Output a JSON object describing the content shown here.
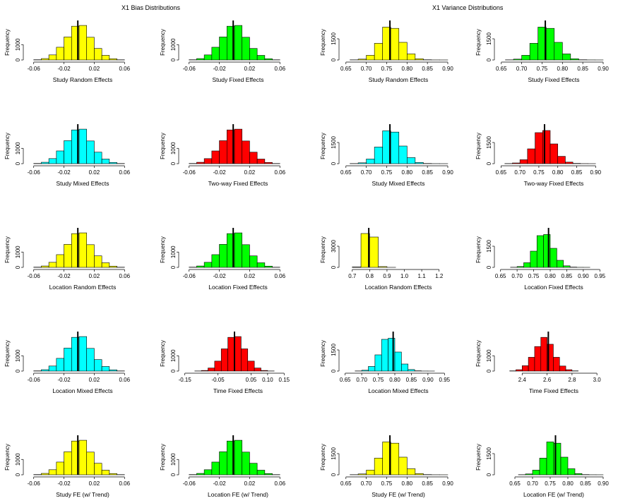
{
  "titles": {
    "left": "X1 Bias Distributions",
    "right": "X1 Variance Distributions"
  },
  "colors": {
    "yellow": "#ffff00",
    "green": "#00ff00",
    "cyan": "#00ffff",
    "red": "#ff0000",
    "line": "#000000"
  },
  "chart_data": [
    {
      "type": "histogram",
      "title": "",
      "xlabel": "Study Random Effects",
      "ylabel": "Frequency",
      "color": "yellow",
      "xlim": [
        -0.07,
        0.07
      ],
      "ylim": [
        0,
        2300
      ],
      "xticks": [
        -0.06,
        -0.02,
        0.02,
        0.06
      ],
      "xtick_labels": [
        "-0.06",
        "-0.02",
        "0.02",
        "0.06"
      ],
      "yticks": [
        0,
        1000
      ],
      "ytick_labels": [
        "0",
        "1000"
      ],
      "bin_start": -0.06,
      "bin_width": 0.01,
      "values": [
        15,
        90,
        330,
        830,
        1500,
        2200,
        2250,
        1480,
        750,
        300,
        80,
        12
      ],
      "mean_line": -0.0017
    },
    {
      "type": "histogram",
      "title": "",
      "xlabel": "Study Fixed Effects",
      "ylabel": "Frequency",
      "color": "green",
      "xlim": [
        -0.07,
        0.07
      ],
      "ylim": [
        0,
        2300
      ],
      "xticks": [
        -0.06,
        -0.02,
        0.02,
        0.06
      ],
      "xtick_labels": [
        "-0.06",
        "-0.02",
        "0.02",
        "0.06"
      ],
      "yticks": [
        0,
        1000
      ],
      "ytick_labels": [
        "0",
        "1000"
      ],
      "bin_start": -0.06,
      "bin_width": 0.01,
      "values": [
        15,
        90,
        330,
        830,
        1500,
        2200,
        2250,
        1480,
        750,
        300,
        80,
        12
      ],
      "mean_line": -0.0017
    },
    {
      "type": "histogram",
      "title": "",
      "xlabel": "Study Random Effects",
      "ylabel": "Frequency",
      "color": "yellow",
      "xlim": [
        0.64,
        0.9
      ],
      "ylim": [
        0,
        2500
      ],
      "xticks": [
        0.65,
        0.7,
        0.75,
        0.8,
        0.85,
        0.9
      ],
      "xtick_labels": [
        "0.65",
        "0.70",
        "0.75",
        "0.80",
        "0.85",
        "0.90"
      ],
      "yticks": [
        0,
        1500
      ],
      "ytick_labels": [
        "0",
        "1500"
      ],
      "bin_start": 0.66,
      "bin_width": 0.02,
      "values": [
        10,
        60,
        330,
        1180,
        2330,
        2240,
        1250,
        430,
        85,
        15,
        4,
        2
      ],
      "mean_line": 0.758
    },
    {
      "type": "histogram",
      "title": "",
      "xlabel": "Study Fixed Effects",
      "ylabel": "Frequency",
      "color": "green",
      "xlim": [
        0.64,
        0.9
      ],
      "ylim": [
        0,
        2500
      ],
      "xticks": [
        0.65,
        0.7,
        0.75,
        0.8,
        0.85,
        0.9
      ],
      "xtick_labels": [
        "0.65",
        "0.70",
        "0.75",
        "0.80",
        "0.85",
        "0.90"
      ],
      "yticks": [
        0,
        1500
      ],
      "ytick_labels": [
        "0",
        "1500"
      ],
      "bin_start": 0.66,
      "bin_width": 0.02,
      "values": [
        10,
        60,
        330,
        1180,
        2330,
        2240,
        1250,
        430,
        85,
        15,
        4,
        2
      ],
      "mean_line": 0.758
    },
    {
      "type": "histogram",
      "title": "",
      "xlabel": "Study Mixed Effects",
      "ylabel": "Frequency",
      "color": "cyan",
      "xlim": [
        -0.07,
        0.07
      ],
      "ylim": [
        0,
        2300
      ],
      "xticks": [
        -0.06,
        -0.02,
        0.02,
        0.06
      ],
      "xtick_labels": [
        "-0.06",
        "-0.02",
        "0.02",
        "0.06"
      ],
      "yticks": [
        0,
        1000
      ],
      "ytick_labels": [
        "0",
        "1000"
      ],
      "bin_start": -0.06,
      "bin_width": 0.01,
      "values": [
        15,
        90,
        330,
        830,
        1500,
        2200,
        2250,
        1480,
        750,
        300,
        80,
        12
      ],
      "mean_line": -0.0017
    },
    {
      "type": "histogram",
      "title": "",
      "xlabel": "Two-way Fixed Effects",
      "ylabel": "Frequency",
      "color": "red",
      "xlim": [
        -0.07,
        0.07
      ],
      "ylim": [
        0,
        2300
      ],
      "xticks": [
        -0.06,
        -0.02,
        0.02,
        0.06
      ],
      "xtick_labels": [
        "-0.06",
        "-0.02",
        "0.02",
        "0.06"
      ],
      "yticks": [
        0,
        1000
      ],
      "ytick_labels": [
        "0",
        "1000"
      ],
      "bin_start": -0.06,
      "bin_width": 0.01,
      "values": [
        15,
        90,
        330,
        830,
        1500,
        2200,
        2250,
        1480,
        750,
        300,
        80,
        12
      ],
      "mean_line": -0.0017
    },
    {
      "type": "histogram",
      "title": "",
      "xlabel": "Study Mixed Effects",
      "ylabel": "Frequency",
      "color": "cyan",
      "xlim": [
        0.64,
        0.9
      ],
      "ylim": [
        0,
        2500
      ],
      "xticks": [
        0.65,
        0.7,
        0.75,
        0.8,
        0.85,
        0.9
      ],
      "xtick_labels": [
        "0.65",
        "0.70",
        "0.75",
        "0.80",
        "0.85",
        "0.90"
      ],
      "yticks": [
        0,
        1500
      ],
      "ytick_labels": [
        "0",
        "1500"
      ],
      "bin_start": 0.66,
      "bin_width": 0.02,
      "values": [
        10,
        60,
        330,
        1180,
        2330,
        2240,
        1250,
        430,
        85,
        15,
        4,
        2
      ],
      "mean_line": 0.758
    },
    {
      "type": "histogram",
      "title": "",
      "xlabel": "Two-way Fixed Effects",
      "ylabel": "Frequency",
      "color": "red",
      "xlim": [
        0.64,
        0.92
      ],
      "ylim": [
        0,
        2500
      ],
      "xticks": [
        0.65,
        0.7,
        0.75,
        0.8,
        0.85,
        0.9
      ],
      "xtick_labels": [
        "0.65",
        "0.70",
        "0.75",
        "0.80",
        "0.85",
        "0.90"
      ],
      "yticks": [
        0,
        1500
      ],
      "ytick_labels": [
        "0",
        "1500"
      ],
      "bin_start": 0.66,
      "bin_width": 0.02,
      "values": [
        10,
        50,
        280,
        1050,
        2200,
        2350,
        1400,
        520,
        110,
        20,
        5,
        2
      ],
      "mean_line": 0.765
    },
    {
      "type": "histogram",
      "title": "",
      "xlabel": "Location Random Effects",
      "ylabel": "Frequency",
      "color": "yellow",
      "xlim": [
        -0.07,
        0.07
      ],
      "ylim": [
        0,
        2300
      ],
      "xticks": [
        -0.06,
        -0.02,
        0.02,
        0.06
      ],
      "xtick_labels": [
        "-0.06",
        "-0.02",
        "0.02",
        "0.06"
      ],
      "yticks": [
        0,
        1000
      ],
      "ytick_labels": [
        "0",
        "1000"
      ],
      "bin_start": -0.06,
      "bin_width": 0.01,
      "values": [
        15,
        90,
        330,
        830,
        1500,
        2200,
        2250,
        1480,
        750,
        300,
        80,
        12
      ],
      "mean_line": -0.0017
    },
    {
      "type": "histogram",
      "title": "",
      "xlabel": "Location Fixed Effects",
      "ylabel": "Frequency",
      "color": "green",
      "xlim": [
        -0.07,
        0.07
      ],
      "ylim": [
        0,
        2300
      ],
      "xticks": [
        -0.06,
        -0.02,
        0.02,
        0.06
      ],
      "xtick_labels": [
        "-0.06",
        "-0.02",
        "0.02",
        "0.06"
      ],
      "yticks": [
        0,
        1000
      ],
      "ytick_labels": [
        "0",
        "1000"
      ],
      "bin_start": -0.06,
      "bin_width": 0.01,
      "values": [
        15,
        90,
        330,
        830,
        1500,
        2200,
        2250,
        1480,
        750,
        300,
        80,
        12
      ],
      "mean_line": -0.0017
    },
    {
      "type": "histogram",
      "title": "",
      "xlabel": "Location Random Effects",
      "ylabel": "Frequency",
      "color": "yellow",
      "xlim": [
        0.64,
        1.25
      ],
      "ylim": [
        0,
        5000
      ],
      "xticks": [
        0.7,
        0.8,
        0.9,
        1.0,
        1.1,
        1.2
      ],
      "xtick_labels": [
        "0.7",
        "0.8",
        "0.9",
        "1.0",
        "1.1",
        "1.2"
      ],
      "yticks": [
        0,
        3000
      ],
      "ytick_labels": [
        "0",
        "3000"
      ],
      "bin_start": 0.7,
      "bin_width": 0.05,
      "values": [
        60,
        4800,
        4300,
        110,
        5,
        0,
        0,
        0,
        0,
        0,
        0
      ],
      "mean_line": 0.795
    },
    {
      "type": "histogram",
      "title": "",
      "xlabel": "Location Fixed Effects",
      "ylabel": "Frequency",
      "color": "green",
      "xlim": [
        0.64,
        0.96
      ],
      "ylim": [
        0,
        2500
      ],
      "xticks": [
        0.65,
        0.7,
        0.75,
        0.8,
        0.85,
        0.9,
        0.95
      ],
      "xtick_labels": [
        "0.65",
        "0.70",
        "0.75",
        "0.80",
        "0.85",
        "0.90",
        "0.95"
      ],
      "yticks": [
        0,
        1500
      ],
      "ytick_labels": [
        "0",
        "1500"
      ],
      "bin_start": 0.68,
      "bin_width": 0.02,
      "values": [
        10,
        60,
        330,
        1150,
        2250,
        2330,
        1350,
        500,
        110,
        20,
        4,
        2
      ],
      "mean_line": 0.795
    },
    {
      "type": "histogram",
      "title": "",
      "xlabel": "Location Mixed Effects",
      "ylabel": "Frequency",
      "color": "cyan",
      "xlim": [
        -0.07,
        0.07
      ],
      "ylim": [
        0,
        2300
      ],
      "xticks": [
        -0.06,
        -0.02,
        0.02,
        0.06
      ],
      "xtick_labels": [
        "-0.06",
        "-0.02",
        "0.02",
        "0.06"
      ],
      "yticks": [
        0,
        1000
      ],
      "ytick_labels": [
        "0",
        "1000"
      ],
      "bin_start": -0.06,
      "bin_width": 0.01,
      "values": [
        15,
        90,
        330,
        830,
        1500,
        2200,
        2250,
        1480,
        750,
        300,
        80,
        12
      ],
      "mean_line": -0.0017
    },
    {
      "type": "histogram",
      "title": "",
      "xlabel": "Time Fixed Effects",
      "ylabel": "Frequency",
      "color": "red",
      "xlim": [
        -0.16,
        0.16
      ],
      "ylim": [
        0,
        2300
      ],
      "xticks": [
        -0.15,
        -0.05,
        0.05,
        0.1,
        0.15
      ],
      "xtick_labels": [
        "-0.15",
        "-0.05",
        "0.05",
        "0.10",
        "0.15"
      ],
      "yticks": [
        0,
        1000
      ],
      "ytick_labels": [
        "0",
        "1000"
      ],
      "bin_start": -0.12,
      "bin_width": 0.02,
      "values": [
        8,
        40,
        200,
        650,
        1450,
        2200,
        2250,
        1450,
        650,
        200,
        40,
        8
      ],
      "mean_line": 0.0
    },
    {
      "type": "histogram",
      "title": "",
      "xlabel": "Location Mixed Effects",
      "ylabel": "Frequency",
      "color": "cyan",
      "xlim": [
        0.64,
        0.96
      ],
      "ylim": [
        0,
        2500
      ],
      "xticks": [
        0.65,
        0.7,
        0.75,
        0.8,
        0.85,
        0.9,
        0.95
      ],
      "xtick_labels": [
        "0.65",
        "0.70",
        "0.75",
        "0.80",
        "0.85",
        "0.90",
        "0.95"
      ],
      "yticks": [
        0,
        1500
      ],
      "ytick_labels": [
        "0",
        "1500"
      ],
      "bin_start": 0.68,
      "bin_width": 0.02,
      "values": [
        10,
        60,
        330,
        1150,
        2250,
        2330,
        1350,
        500,
        110,
        20,
        4,
        2
      ],
      "mean_line": 0.795
    },
    {
      "type": "histogram",
      "title": "",
      "xlabel": "Time Fixed Effects",
      "ylabel": "Frequency",
      "color": "red",
      "xlim": [
        2.2,
        3.05
      ],
      "ylim": [
        0,
        2300
      ],
      "xticks": [
        2.4,
        2.6,
        2.8,
        3.0
      ],
      "xtick_labels": [
        "2.4",
        "2.6",
        "2.8",
        "3.0"
      ],
      "yticks": [
        0,
        1000
      ],
      "ytick_labels": [
        "0",
        "1000"
      ],
      "bin_start": 2.3,
      "bin_width": 0.05,
      "values": [
        15,
        90,
        350,
        900,
        1600,
        2200,
        1750,
        900,
        330,
        90,
        15
      ],
      "mean_line": 2.61
    },
    {
      "type": "histogram",
      "title": "",
      "xlabel": "Study FE (w/ Trend)",
      "ylabel": "Frequency",
      "color": "yellow",
      "xlim": [
        -0.07,
        0.07
      ],
      "ylim": [
        0,
        2300
      ],
      "xticks": [
        -0.06,
        -0.02,
        0.02,
        0.06
      ],
      "xtick_labels": [
        "-0.06",
        "-0.02",
        "0.02",
        "0.06"
      ],
      "yticks": [
        0,
        1000
      ],
      "ytick_labels": [
        "0",
        "1000"
      ],
      "bin_start": -0.06,
      "bin_width": 0.01,
      "values": [
        15,
        90,
        330,
        830,
        1500,
        2200,
        2250,
        1480,
        750,
        300,
        80,
        12
      ],
      "mean_line": -0.0017
    },
    {
      "type": "histogram",
      "title": "",
      "xlabel": "Location FE (w/ Trend)",
      "ylabel": "Frequency",
      "color": "green",
      "xlim": [
        -0.07,
        0.07
      ],
      "ylim": [
        0,
        2300
      ],
      "xticks": [
        -0.06,
        -0.02,
        0.02,
        0.06
      ],
      "xtick_labels": [
        "-0.06",
        "-0.02",
        "0.02",
        "0.06"
      ],
      "yticks": [
        0,
        1000
      ],
      "ytick_labels": [
        "0",
        "1000"
      ],
      "bin_start": -0.06,
      "bin_width": 0.01,
      "values": [
        15,
        90,
        330,
        830,
        1500,
        2200,
        2250,
        1480,
        750,
        300,
        80,
        12
      ],
      "mean_line": -0.0017
    },
    {
      "type": "histogram",
      "title": "",
      "xlabel": "Study FE (w/ Trend)",
      "ylabel": "Frequency",
      "color": "yellow",
      "xlim": [
        0.64,
        0.9
      ],
      "ylim": [
        0,
        2500
      ],
      "xticks": [
        0.65,
        0.7,
        0.75,
        0.8,
        0.85,
        0.9
      ],
      "xtick_labels": [
        "0.65",
        "0.70",
        "0.75",
        "0.80",
        "0.85",
        "0.90"
      ],
      "yticks": [
        0,
        1500
      ],
      "ytick_labels": [
        "0",
        "1500"
      ],
      "bin_start": 0.66,
      "bin_width": 0.02,
      "values": [
        10,
        60,
        330,
        1180,
        2330,
        2240,
        1250,
        430,
        85,
        15,
        4,
        2
      ],
      "mean_line": 0.758
    },
    {
      "type": "histogram",
      "title": "",
      "xlabel": "Location FE (w/ Trend)",
      "ylabel": "Frequency",
      "color": "green",
      "xlim": [
        0.6,
        0.9
      ],
      "ylim": [
        0,
        2500
      ],
      "xticks": [
        0.65,
        0.7,
        0.75,
        0.8,
        0.85,
        0.9
      ],
      "xtick_labels": [
        "0.65",
        "0.70",
        "0.75",
        "0.80",
        "0.85",
        "0.90"
      ],
      "yticks": [
        0,
        1500
      ],
      "ytick_labels": [
        "0",
        "1500"
      ],
      "bin_start": 0.66,
      "bin_width": 0.02,
      "values": [
        10,
        60,
        330,
        1180,
        2330,
        2240,
        1250,
        430,
        85,
        15,
        4,
        2
      ],
      "mean_line": 0.765
    }
  ]
}
